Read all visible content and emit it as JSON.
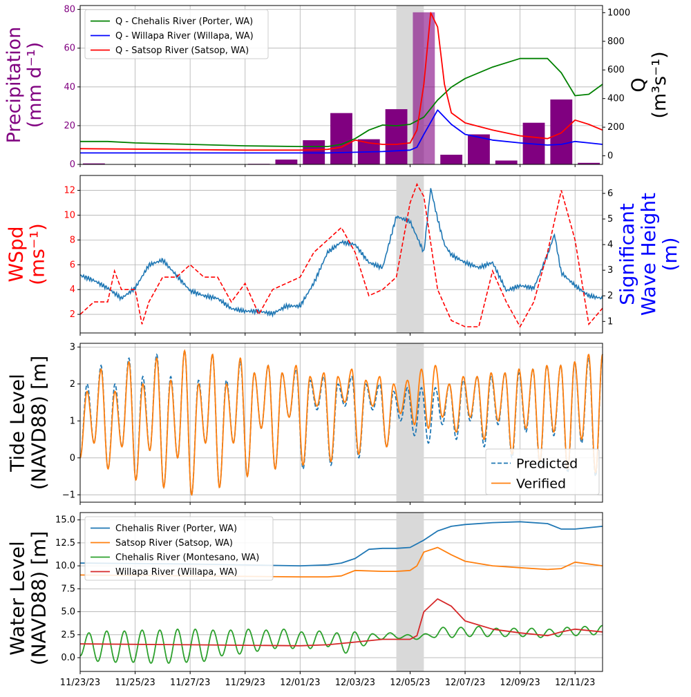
{
  "x_ticks": [
    "11/23/23",
    "11/25/23",
    "11/27/23",
    "11/29/23",
    "12/01/23",
    "12/03/23",
    "12/05/23",
    "12/07/23",
    "12/09/23",
    "12/11/23"
  ],
  "x_range": [
    "2023-11-23",
    "2023-12-12"
  ],
  "shaded_event": [
    "2023-12-04T12:00",
    "2023-12-05T12:00"
  ],
  "chart_data": [
    {
      "type": "bar",
      "panel": "precipitation-discharge",
      "ylabel": "Precipitation (mm d⁻¹)",
      "ylabel_color": "#800080",
      "ylim": [
        0,
        82
      ],
      "yticks": [
        "0",
        "20",
        "40",
        "60",
        "80"
      ],
      "y2label": "Q (m³s⁻¹)",
      "y2lim": [
        -60,
        1050
      ],
      "y2ticks": [
        "0",
        "200",
        "400",
        "600",
        "800",
        "1000"
      ],
      "grid": true,
      "legend_position": "upper-left",
      "bars": {
        "color": "#800080",
        "dates": [
          "2023-11-23",
          "2023-11-24",
          "2023-11-25",
          "2023-11-26",
          "2023-11-27",
          "2023-11-28",
          "2023-11-29",
          "2023-11-30",
          "2023-12-01",
          "2023-12-02",
          "2023-12-03",
          "2023-12-04",
          "2023-12-05",
          "2023-12-06",
          "2023-12-07",
          "2023-12-08",
          "2023-12-09",
          "2023-12-10",
          "2023-12-11"
        ],
        "values": [
          0.5,
          0.1,
          0.1,
          0.1,
          0.1,
          0.1,
          0.3,
          2.5,
          12.5,
          26.5,
          13,
          28.5,
          78.5,
          5,
          15.5,
          2,
          21.5,
          33.5,
          0.8
        ]
      },
      "series": [
        {
          "name": "Q - Chehalis River (Porter, WA)",
          "color": "#008000",
          "dates": [
            "2023-11-23",
            "2023-11-24",
            "2023-11-25",
            "2023-11-27",
            "2023-11-29",
            "2023-12-01",
            "2023-12-02",
            "2023-12-02T12:00",
            "2023-12-03",
            "2023-12-03T12:00",
            "2023-12-04",
            "2023-12-04T12:00",
            "2023-12-05",
            "2023-12-05T12:00",
            "2023-12-06",
            "2023-12-06T12:00",
            "2023-12-07",
            "2023-12-08",
            "2023-12-09",
            "2023-12-10",
            "2023-12-10T12:00",
            "2023-12-11",
            "2023-12-11T12:00",
            "2023-12-12"
          ],
          "values": [
            100,
            100,
            90,
            80,
            70,
            65,
            65,
            80,
            120,
            180,
            215,
            210,
            220,
            270,
            390,
            480,
            540,
            620,
            680,
            680,
            580,
            420,
            430,
            500
          ]
        },
        {
          "name": "Q - Willapa River (Willapa, WA)",
          "color": "#0000ff",
          "dates": [
            "2023-11-23",
            "2023-11-26",
            "2023-11-29",
            "2023-12-01",
            "2023-12-02",
            "2023-12-03",
            "2023-12-04",
            "2023-12-04T12:00",
            "2023-12-05",
            "2023-12-05T06:00",
            "2023-12-05T12:00",
            "2023-12-06",
            "2023-12-06T12:00",
            "2023-12-07",
            "2023-12-08",
            "2023-12-09",
            "2023-12-10",
            "2023-12-10T12:00",
            "2023-12-11",
            "2023-12-11T12:00",
            "2023-12-12"
          ],
          "values": [
            20,
            20,
            20,
            20,
            20,
            25,
            30,
            35,
            40,
            60,
            150,
            320,
            220,
            150,
            110,
            90,
            75,
            80,
            100,
            90,
            80
          ]
        },
        {
          "name": "Q - Satsop River (Satsop, WA)",
          "color": "#ff0000",
          "dates": [
            "2023-11-23",
            "2023-11-26",
            "2023-11-29",
            "2023-12-01",
            "2023-12-02",
            "2023-12-02T12:00",
            "2023-12-03",
            "2023-12-03T12:00",
            "2023-12-04",
            "2023-12-04T12:00",
            "2023-12-05",
            "2023-12-05T06:00",
            "2023-12-05T12:00",
            "2023-12-05T18:00",
            "2023-12-06",
            "2023-12-06T06:00",
            "2023-12-06T12:00",
            "2023-12-07",
            "2023-12-08",
            "2023-12-09",
            "2023-12-10",
            "2023-12-10T12:00",
            "2023-12-11",
            "2023-12-11T12:00",
            "2023-12-12"
          ],
          "values": [
            50,
            45,
            40,
            40,
            45,
            60,
            110,
            90,
            80,
            80,
            90,
            180,
            500,
            1000,
            900,
            500,
            300,
            230,
            180,
            140,
            120,
            160,
            250,
            220,
            180
          ]
        }
      ]
    },
    {
      "type": "line",
      "panel": "wind-wave",
      "ylabel": "WSpd (ms⁻¹)",
      "ylabel_color": "#ff0000",
      "ylim": [
        0.5,
        13.2
      ],
      "yticks": [
        "2",
        "4",
        "6",
        "8",
        "10",
        "12"
      ],
      "y2label": "Significant Wave Height (m)",
      "y2label_color": "#0000ff",
      "y2lim": [
        0.55,
        6.7
      ],
      "y2ticks": [
        "1",
        "2",
        "3",
        "4",
        "5",
        "6"
      ],
      "grid": true,
      "series": [
        {
          "name": "",
          "axis": "left",
          "style": "dashed",
          "color": "#ff0000",
          "dates": [
            "2023-11-23",
            "2023-11-23T12:00",
            "2023-11-24",
            "2023-11-24T06:00",
            "2023-11-24T12:00",
            "2023-11-25",
            "2023-11-25T06:00",
            "2023-11-25T12:00",
            "2023-11-26",
            "2023-11-26T12:00",
            "2023-11-27",
            "2023-11-27T12:00",
            "2023-11-28",
            "2023-11-28T12:00",
            "2023-11-29",
            "2023-11-29T12:00",
            "2023-11-30",
            "2023-11-30T12:00",
            "2023-12-01",
            "2023-12-01T12:00",
            "2023-12-02",
            "2023-12-02T12:00",
            "2023-12-03",
            "2023-12-03T12:00",
            "2023-12-04",
            "2023-12-04T12:00",
            "2023-12-05",
            "2023-12-05T06:00",
            "2023-12-05T12:00",
            "2023-12-06",
            "2023-12-06T12:00",
            "2023-12-07",
            "2023-12-07T12:00",
            "2023-12-08",
            "2023-12-08T12:00",
            "2023-12-09",
            "2023-12-09T12:00",
            "2023-12-10",
            "2023-12-10T12:00",
            "2023-12-11",
            "2023-12-11T12:00",
            "2023-12-12"
          ],
          "values": [
            2,
            3,
            3,
            5.5,
            4,
            4,
            1.2,
            3,
            5,
            5,
            6,
            5,
            5,
            3,
            4.5,
            2,
            4,
            4.5,
            5,
            7,
            8,
            9,
            7,
            3.5,
            4,
            5,
            11,
            12.5,
            11.5,
            4,
            1.5,
            1,
            1,
            5.5,
            3,
            1,
            3,
            7,
            12,
            8,
            1.2,
            2.5
          ]
        },
        {
          "name": "",
          "axis": "right",
          "style": "solid",
          "color": "#1f77b4",
          "dates": [
            "2023-11-23",
            "2023-11-23T12:00",
            "2023-11-24",
            "2023-11-24T12:00",
            "2023-11-25",
            "2023-11-25T12:00",
            "2023-11-26",
            "2023-11-26T12:00",
            "2023-11-27",
            "2023-11-27T12:00",
            "2023-11-28",
            "2023-11-28T12:00",
            "2023-11-29",
            "2023-11-29T12:00",
            "2023-11-30",
            "2023-11-30T12:00",
            "2023-12-01",
            "2023-12-01T12:00",
            "2023-12-02",
            "2023-12-02T12:00",
            "2023-12-03",
            "2023-12-03T12:00",
            "2023-12-04",
            "2023-12-04T12:00",
            "2023-12-05",
            "2023-12-05T06:00",
            "2023-12-05T12:00",
            "2023-12-05T18:00",
            "2023-12-06",
            "2023-12-06T06:00",
            "2023-12-06T12:00",
            "2023-12-07",
            "2023-12-07T12:00",
            "2023-12-08",
            "2023-12-08T12:00",
            "2023-12-09",
            "2023-12-09T12:00",
            "2023-12-10",
            "2023-12-10T06:00",
            "2023-12-10T12:00",
            "2023-12-11",
            "2023-12-11T12:00",
            "2023-12-12"
          ],
          "values": [
            2.8,
            2.6,
            2.3,
            1.9,
            2.3,
            3.2,
            3.4,
            2.8,
            2.2,
            2.0,
            1.9,
            1.5,
            1.4,
            1.4,
            1.3,
            1.6,
            1.6,
            2.5,
            3.7,
            4.1,
            4.0,
            3.3,
            3.1,
            5.1,
            4.9,
            4.3,
            3.7,
            6.2,
            5.0,
            4.0,
            3.6,
            3.3,
            3.1,
            3.3,
            2.2,
            2.4,
            2.3,
            3.6,
            4.4,
            2.9,
            2.4,
            2.0,
            1.9
          ]
        }
      ]
    },
    {
      "type": "line",
      "panel": "tide",
      "ylabel": "Tide Level (NAVD88) [m]",
      "ylim": [
        -1.2,
        3.1
      ],
      "yticks": [
        "−1",
        "0",
        "1",
        "2",
        "3"
      ],
      "grid": true,
      "legend_position": "lower-right",
      "series": [
        {
          "name": "Predicted",
          "style": "dashed",
          "color": "#1f77b4",
          "high": [
            2.0,
            2.5,
            2.0,
            2.7,
            2.2,
            2.8,
            2.2,
            2.9,
            2.1,
            2.8,
            2.1,
            2.6,
            2.3,
            2.5,
            2.3,
            2.4,
            2.1,
            2.2,
            2.0,
            2.2,
            2.0,
            2.0,
            1.8,
            1.9,
            1.9,
            1.9,
            2.0,
            2.1,
            2.2,
            2.2,
            2.3,
            2.3,
            2.4,
            2.5,
            2.5,
            2.6,
            2.7,
            2.8
          ],
          "low": [
            0.0,
            0.4,
            -0.3,
            0.3,
            -0.6,
            0.2,
            -0.8,
            0.0,
            -1.0,
            0.4,
            -0.8,
            0.4,
            -0.5,
            0.8,
            -0.3,
            1.1,
            -0.3,
            1.3,
            -0.2,
            1.4,
            0.0,
            1.3,
            0.3,
            1.0,
            0.6,
            0.4,
            0.9,
            0.5,
            1.0,
            0.3,
            0.9,
            0.0,
            0.7,
            -0.2,
            0.6,
            -0.4,
            0.4,
            -0.5
          ]
        },
        {
          "name": "Verified",
          "style": "solid",
          "color": "#ff7f0e",
          "high": [
            1.8,
            2.4,
            1.8,
            2.6,
            2.0,
            2.7,
            2.1,
            2.9,
            2.0,
            2.8,
            2.0,
            2.7,
            2.3,
            2.5,
            2.3,
            2.5,
            2.2,
            2.3,
            2.2,
            2.4,
            2.1,
            2.2,
            2.0,
            2.1,
            2.4,
            2.5,
            2.0,
            2.2,
            2.2,
            2.3,
            2.3,
            2.4,
            2.4,
            2.5,
            2.5,
            2.6,
            2.8,
            2.8
          ],
          "low": [
            0.0,
            0.4,
            -0.3,
            0.3,
            -0.6,
            0.2,
            -0.8,
            0.0,
            -1.0,
            0.4,
            -0.8,
            0.4,
            -0.5,
            0.8,
            -0.3,
            1.1,
            -0.2,
            1.4,
            -0.1,
            1.5,
            0.1,
            1.4,
            0.3,
            1.2,
            0.9,
            0.8,
            1.1,
            0.7,
            1.1,
            0.5,
            1.0,
            0.1,
            0.8,
            -0.1,
            0.7,
            -0.3,
            0.5,
            -0.4
          ]
        }
      ]
    },
    {
      "type": "line",
      "panel": "water-level",
      "ylabel": "Water Level (NAVD88) [m]",
      "ylim": [
        -1.5,
        15.8
      ],
      "yticks": [
        "0.0",
        "2.5",
        "5.0",
        "7.5",
        "10.0",
        "12.5",
        "15.0"
      ],
      "grid": true,
      "legend_position": "upper-left",
      "series": [
        {
          "name": "Chehalis River (Porter, WA)",
          "color": "#1f77b4",
          "dates": [
            "2023-11-23",
            "2023-11-27",
            "2023-12-01",
            "2023-12-02",
            "2023-12-02T12:00",
            "2023-12-03",
            "2023-12-03T12:00",
            "2023-12-04",
            "2023-12-04T12:00",
            "2023-12-05",
            "2023-12-05T12:00",
            "2023-12-06",
            "2023-12-06T12:00",
            "2023-12-07",
            "2023-12-08",
            "2023-12-09",
            "2023-12-10",
            "2023-12-10T12:00",
            "2023-12-11",
            "2023-12-12"
          ],
          "values": [
            10.3,
            10.2,
            10.0,
            10.1,
            10.3,
            10.8,
            11.8,
            11.9,
            11.9,
            12.0,
            12.8,
            13.8,
            14.3,
            14.5,
            14.7,
            14.8,
            14.6,
            14.0,
            14.0,
            14.3
          ]
        },
        {
          "name": "Satsop River (Satsop, WA)",
          "color": "#ff7f0e",
          "dates": [
            "2023-11-23",
            "2023-11-27",
            "2023-12-01",
            "2023-12-02",
            "2023-12-02T12:00",
            "2023-12-03",
            "2023-12-04",
            "2023-12-04T12:00",
            "2023-12-05",
            "2023-12-05T06:00",
            "2023-12-05T12:00",
            "2023-12-06",
            "2023-12-06T12:00",
            "2023-12-07",
            "2023-12-08",
            "2023-12-09",
            "2023-12-10",
            "2023-12-10T12:00",
            "2023-12-11",
            "2023-12-12"
          ],
          "values": [
            9.0,
            8.9,
            8.8,
            8.8,
            8.9,
            9.5,
            9.4,
            9.4,
            9.5,
            10.0,
            11.5,
            12.0,
            11.2,
            10.5,
            10.0,
            9.8,
            9.6,
            9.7,
            10.4,
            10.0
          ]
        },
        {
          "name": "Chehalis River (Montesano, WA)",
          "color": "#2ca02c",
          "tidal": true,
          "high": [
            2.7,
            2.9,
            2.9,
            3.0,
            3.0,
            3.1,
            3.1,
            3.0,
            3.0,
            3.1,
            3.0,
            3.1,
            2.8,
            2.9,
            2.7,
            2.8,
            2.6,
            2.7,
            2.5,
            2.6,
            3.3,
            3.3,
            3.4,
            3.2,
            3.2,
            3.2,
            3.1,
            3.3,
            3.4,
            3.5
          ],
          "low": [
            0.2,
            -0.4,
            -0.5,
            -0.5,
            -0.6,
            -0.6,
            -0.5,
            -0.4,
            0.2,
            0.4,
            0.7,
            1.0,
            1.0,
            1.0,
            1.2,
            0.5,
            1.3,
            2.0,
            2.1,
            2.0,
            2.2,
            2.2,
            2.3,
            2.3,
            2.3,
            2.3,
            2.2,
            2.3,
            2.4,
            2.5
          ]
        },
        {
          "name": "Willapa River (Willapa, WA)",
          "color": "#d62728",
          "dates": [
            "2023-11-23",
            "2023-11-27",
            "2023-12-01",
            "2023-12-02",
            "2023-12-03",
            "2023-12-04",
            "2023-12-05",
            "2023-12-05T06:00",
            "2023-12-05T12:00",
            "2023-12-06",
            "2023-12-06T12:00",
            "2023-12-07",
            "2023-12-08",
            "2023-12-09",
            "2023-12-10",
            "2023-12-10T12:00",
            "2023-12-11",
            "2023-12-12"
          ],
          "values": [
            1.5,
            1.4,
            1.3,
            1.4,
            1.7,
            2.0,
            2.0,
            2.4,
            5.0,
            6.4,
            5.6,
            4.0,
            3.1,
            2.7,
            2.4,
            2.8,
            3.1,
            2.8
          ]
        }
      ]
    }
  ]
}
